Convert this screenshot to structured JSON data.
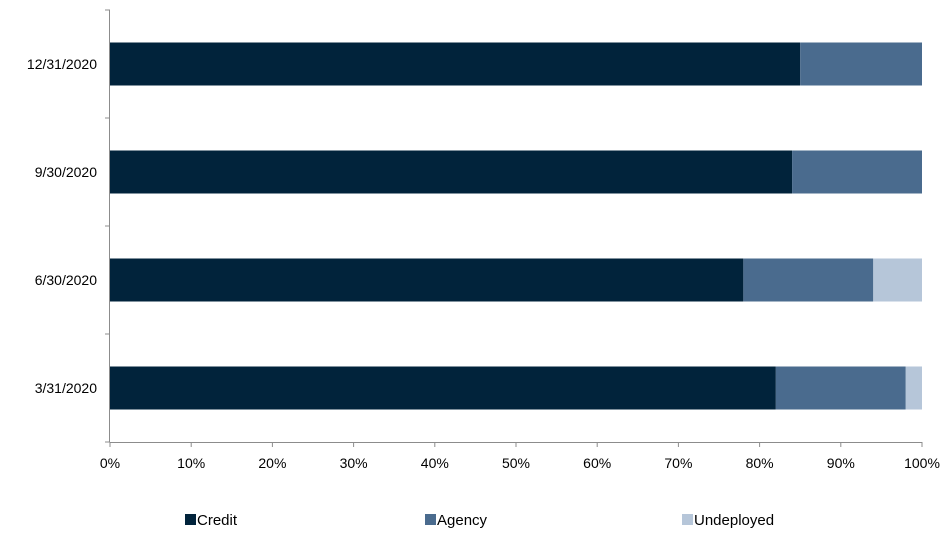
{
  "chart_data": {
    "type": "bar",
    "orientation": "horizontal",
    "stacked": true,
    "percent_stacked": true,
    "categories": [
      "3/31/2020",
      "6/30/2020",
      "9/30/2020",
      "12/31/2020"
    ],
    "series": [
      {
        "name": "Credit",
        "values": [
          82,
          78,
          84,
          85
        ],
        "color": "#01233b"
      },
      {
        "name": "Agency",
        "values": [
          16,
          16,
          16,
          15
        ],
        "color": "#4a6b8e"
      },
      {
        "name": "Undeployed",
        "values": [
          2,
          6,
          0,
          0
        ],
        "color": "#b6c6d9"
      }
    ],
    "xticks": [
      "0%",
      "10%",
      "20%",
      "30%",
      "40%",
      "50%",
      "60%",
      "70%",
      "80%",
      "90%",
      "100%"
    ],
    "xlim": [
      0,
      100
    ],
    "grid": false,
    "legend_position": "bottom"
  }
}
